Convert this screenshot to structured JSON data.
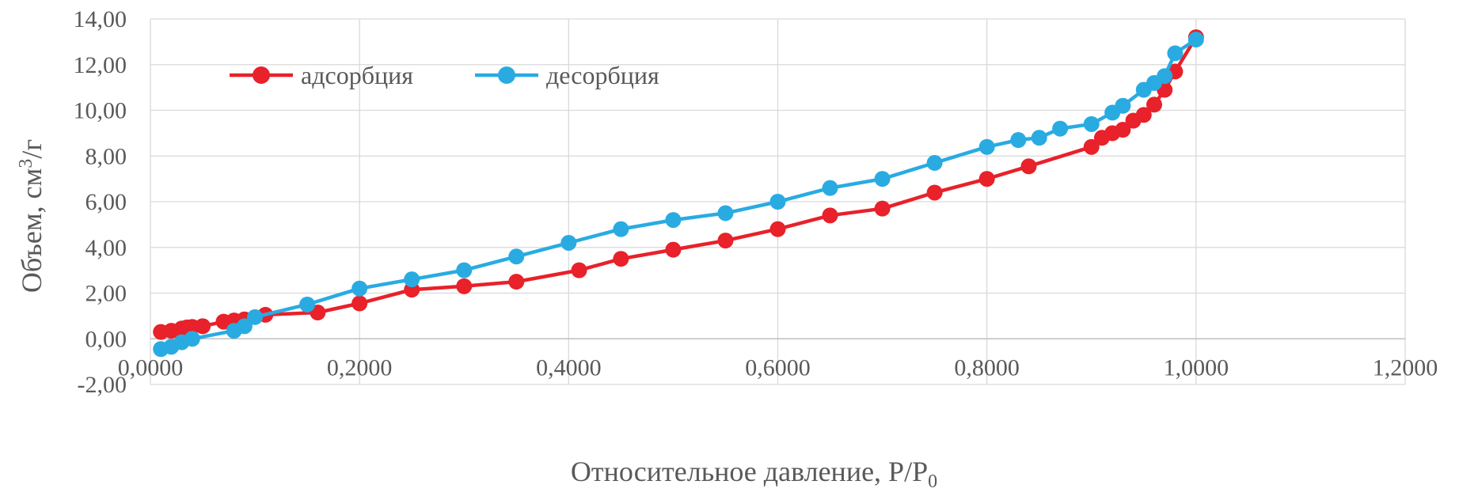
{
  "chart_data": {
    "type": "scatter",
    "title": "",
    "xlabel": "Относительное давление, P/P",
    "xlabel_subscript": "0",
    "ylabel": "Объем, см",
    "ylabel_superscript": "3",
    "ylabel_suffix": "/г",
    "xlim": [
      0,
      1.2
    ],
    "ylim": [
      -2,
      14
    ],
    "x_ticks": [
      0,
      0.2,
      0.4,
      0.6,
      0.8,
      1.0,
      1.2
    ],
    "y_ticks": [
      -2,
      0,
      2,
      4,
      6,
      8,
      10,
      12,
      14
    ],
    "x_tick_labels": [
      "0,0000",
      "0,2000",
      "0,4000",
      "0,6000",
      "0,8000",
      "1,0000",
      "1,2000"
    ],
    "y_tick_labels": [
      "-2,00",
      "0,00",
      "2,00",
      "4,00",
      "6,00",
      "8,00",
      "10,00",
      "12,00",
      "14,00"
    ],
    "grid": true,
    "legend_position": "top-left",
    "lines_with_markers": true,
    "series": [
      {
        "name": "адсорбция",
        "color": "#e8212a",
        "points": [
          [
            0.01,
            0.3
          ],
          [
            0.02,
            0.35
          ],
          [
            0.03,
            0.45
          ],
          [
            0.035,
            0.5
          ],
          [
            0.04,
            0.52
          ],
          [
            0.05,
            0.55
          ],
          [
            0.07,
            0.75
          ],
          [
            0.08,
            0.8
          ],
          [
            0.09,
            0.85
          ],
          [
            0.11,
            1.05
          ],
          [
            0.16,
            1.15
          ],
          [
            0.2,
            1.55
          ],
          [
            0.25,
            2.15
          ],
          [
            0.3,
            2.3
          ],
          [
            0.35,
            2.5
          ],
          [
            0.41,
            3.0
          ],
          [
            0.45,
            3.5
          ],
          [
            0.5,
            3.9
          ],
          [
            0.55,
            4.3
          ],
          [
            0.6,
            4.8
          ],
          [
            0.65,
            5.4
          ],
          [
            0.7,
            5.7
          ],
          [
            0.75,
            6.4
          ],
          [
            0.8,
            7.0
          ],
          [
            0.84,
            7.55
          ],
          [
            0.9,
            8.4
          ],
          [
            0.91,
            8.8
          ],
          [
            0.92,
            9.0
          ],
          [
            0.93,
            9.15
          ],
          [
            0.94,
            9.55
          ],
          [
            0.95,
            9.8
          ],
          [
            0.96,
            10.25
          ],
          [
            0.97,
            10.9
          ],
          [
            0.98,
            11.7
          ],
          [
            1.0,
            13.2
          ]
        ]
      },
      {
        "name": "десорбция",
        "color": "#29abe2",
        "points": [
          [
            0.01,
            -0.45
          ],
          [
            0.02,
            -0.35
          ],
          [
            0.03,
            -0.15
          ],
          [
            0.04,
            0.0
          ],
          [
            0.08,
            0.35
          ],
          [
            0.09,
            0.55
          ],
          [
            0.1,
            0.95
          ],
          [
            0.15,
            1.5
          ],
          [
            0.2,
            2.2
          ],
          [
            0.25,
            2.6
          ],
          [
            0.3,
            3.0
          ],
          [
            0.35,
            3.6
          ],
          [
            0.4,
            4.2
          ],
          [
            0.45,
            4.8
          ],
          [
            0.5,
            5.2
          ],
          [
            0.55,
            5.5
          ],
          [
            0.6,
            6.0
          ],
          [
            0.65,
            6.6
          ],
          [
            0.7,
            7.0
          ],
          [
            0.75,
            7.7
          ],
          [
            0.8,
            8.4
          ],
          [
            0.83,
            8.7
          ],
          [
            0.85,
            8.8
          ],
          [
            0.87,
            9.2
          ],
          [
            0.9,
            9.4
          ],
          [
            0.92,
            9.9
          ],
          [
            0.93,
            10.2
          ],
          [
            0.95,
            10.9
          ],
          [
            0.96,
            11.2
          ],
          [
            0.97,
            11.5
          ],
          [
            0.98,
            12.5
          ],
          [
            1.0,
            13.1
          ]
        ]
      }
    ]
  }
}
